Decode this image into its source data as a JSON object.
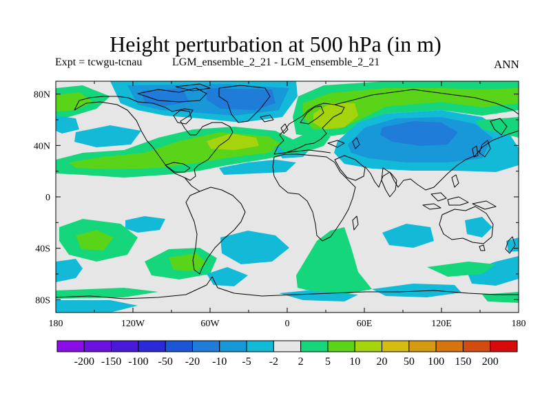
{
  "title": "Height perturbation at 500 hPa (in m)",
  "subtitle_left": "Expt = tcwgu-tcnau",
  "subtitle_center": "LGM_ensemble_2_21 - LGM_ensemble_2_21",
  "subtitle_right": "ANN",
  "axes": {
    "x_ticks": [
      {
        "lon": -180,
        "label": "180"
      },
      {
        "lon": -120,
        "label": "120W"
      },
      {
        "lon": -60,
        "label": "60W"
      },
      {
        "lon": 0,
        "label": "0"
      },
      {
        "lon": 60,
        "label": "60E"
      },
      {
        "lon": 120,
        "label": "120E"
      },
      {
        "lon": 180,
        "label": "180"
      }
    ],
    "y_ticks": [
      {
        "lat": 80,
        "label": "80N"
      },
      {
        "lat": 40,
        "label": "40N"
      },
      {
        "lat": 0,
        "label": "0"
      },
      {
        "lat": -40,
        "label": "40S"
      },
      {
        "lat": -80,
        "label": "80S"
      }
    ],
    "lon_range": [
      -180,
      180
    ],
    "lat_range": [
      -90,
      90
    ]
  },
  "colorbar": {
    "colors": [
      "#8a0de8",
      "#6a12e0",
      "#4a1ada",
      "#2a2ad8",
      "#1a56d6",
      "#1f7cd8",
      "#1898d8",
      "#12bad8",
      "#e6e6e6",
      "#16d67c",
      "#5ad418",
      "#a6d40c",
      "#d4bc10",
      "#d69a10",
      "#d67410",
      "#d24c10",
      "#d80a0a"
    ],
    "labels": [
      "-200",
      "-150",
      "-100",
      "-50",
      "-20",
      "-10",
      "-5",
      "-2",
      "2",
      "5",
      "10",
      "20",
      "50",
      "100",
      "150",
      "200"
    ]
  },
  "colors": {
    "neutral": "#e6e6e6",
    "c_neg10": "#1f7cd8",
    "c_neg5": "#1898d8",
    "c_neg2": "#12bad8",
    "c_pos5": "#16d67c",
    "c_pos10": "#5ad418",
    "c_pos20": "#a6d40c",
    "coast": "#000000"
  }
}
